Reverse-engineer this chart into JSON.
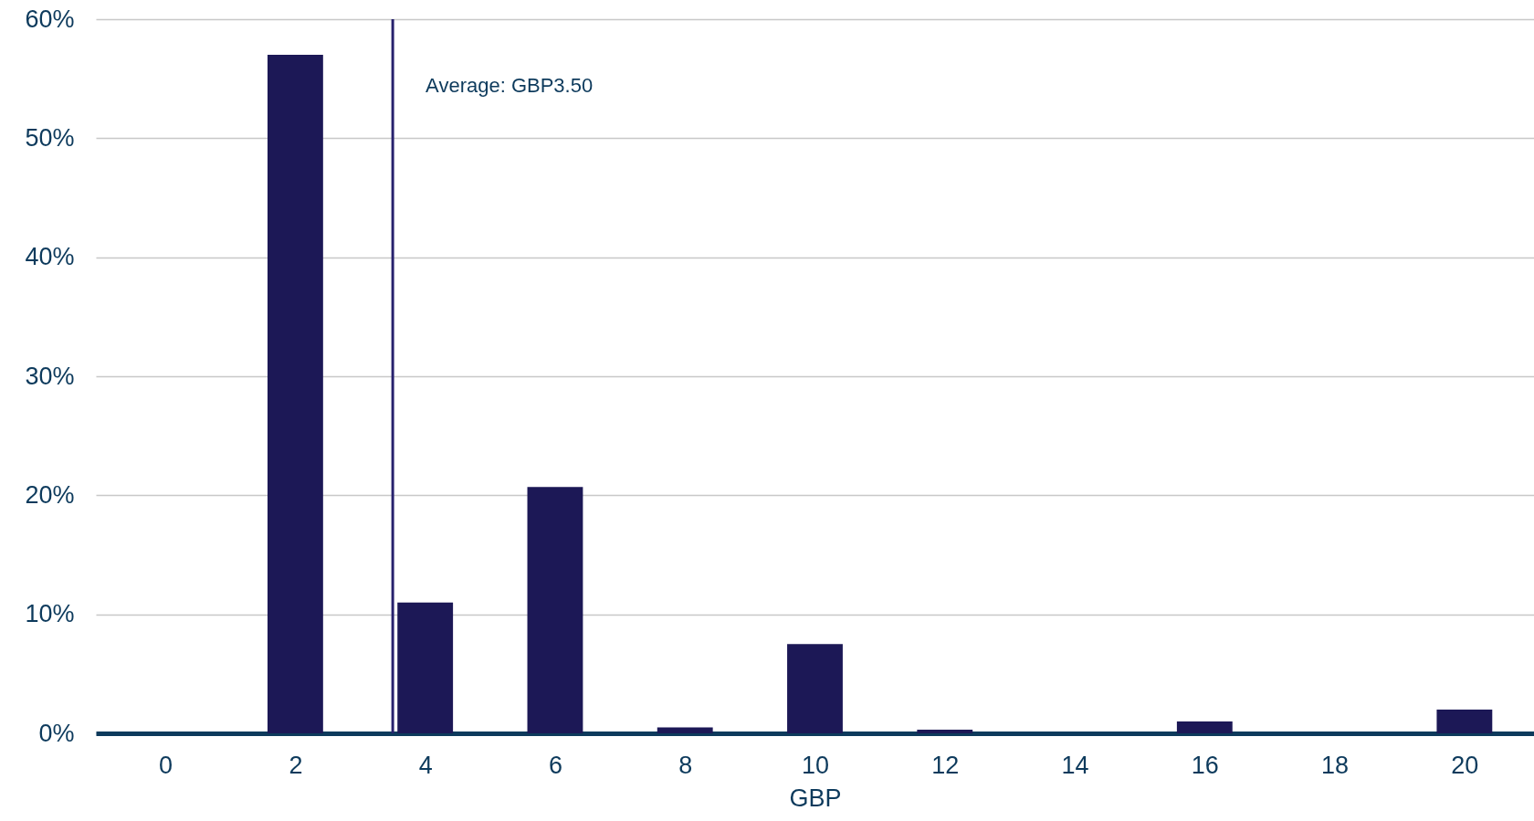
{
  "chart_data": {
    "type": "bar",
    "xlabel": "GBP",
    "x": [
      0,
      2,
      4,
      6,
      8,
      10,
      12,
      14,
      16,
      18,
      20
    ],
    "values": [
      0,
      57,
      11,
      20.7,
      0.5,
      7.5,
      0.3,
      0,
      1,
      0,
      2
    ],
    "color": "#1c1856",
    "xlim": [
      -1,
      21
    ],
    "xticks": [
      0,
      2,
      4,
      6,
      8,
      10,
      12,
      14,
      16,
      18,
      20
    ],
    "ylim": [
      0,
      60
    ],
    "yticks": [
      {
        "value": 0,
        "label": "0%"
      },
      {
        "value": 10,
        "label": "10%"
      },
      {
        "value": 20,
        "label": "20%"
      },
      {
        "value": 30,
        "label": "30%"
      },
      {
        "value": 40,
        "label": "40%"
      },
      {
        "value": 50,
        "label": "50%"
      },
      {
        "value": 60,
        "label": "60%"
      }
    ],
    "grid": "y",
    "ref_lines": [
      {
        "axis": "x",
        "value": 3.5,
        "label": "Average: GBP3.50",
        "color": "#28226e"
      }
    ]
  }
}
